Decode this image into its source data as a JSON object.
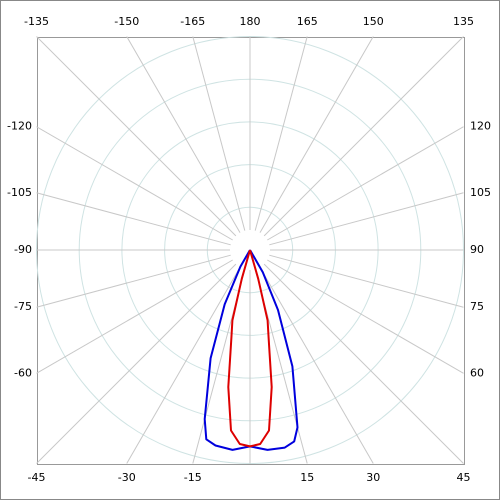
{
  "chart_data": {
    "type": "polar",
    "theta_zero": "bottom",
    "rlim": [
      0,
      100
    ],
    "rticks": [
      20,
      40,
      60,
      80,
      100
    ],
    "thetaticks": [
      -135,
      -150,
      -165,
      180,
      165,
      150,
      135,
      -120,
      -105,
      -90,
      -75,
      -60,
      -45,
      -30,
      -15,
      15,
      30,
      45,
      60,
      75,
      90,
      105,
      120
    ],
    "series": [
      {
        "color": "#0000dd",
        "theta": [
          -35,
          -30,
          -25,
          -20,
          -15,
          -13,
          -10,
          -5,
          0,
          5,
          10,
          13,
          15,
          20,
          25,
          30,
          35
        ],
        "values": [
          0,
          9,
          28,
          54,
          82,
          91,
          93,
          94,
          92,
          94,
          94,
          92,
          86,
          58,
          31,
          12,
          0
        ]
      },
      {
        "color": "#dd0000",
        "theta": [
          -20,
          -16,
          -14,
          -12,
          -9,
          -6,
          -3,
          0,
          3,
          6,
          9,
          12,
          14,
          16,
          20
        ],
        "values": [
          0,
          14,
          34,
          42,
          65,
          85,
          91,
          92,
          91,
          85,
          65,
          42,
          34,
          14,
          0
        ]
      }
    ]
  }
}
